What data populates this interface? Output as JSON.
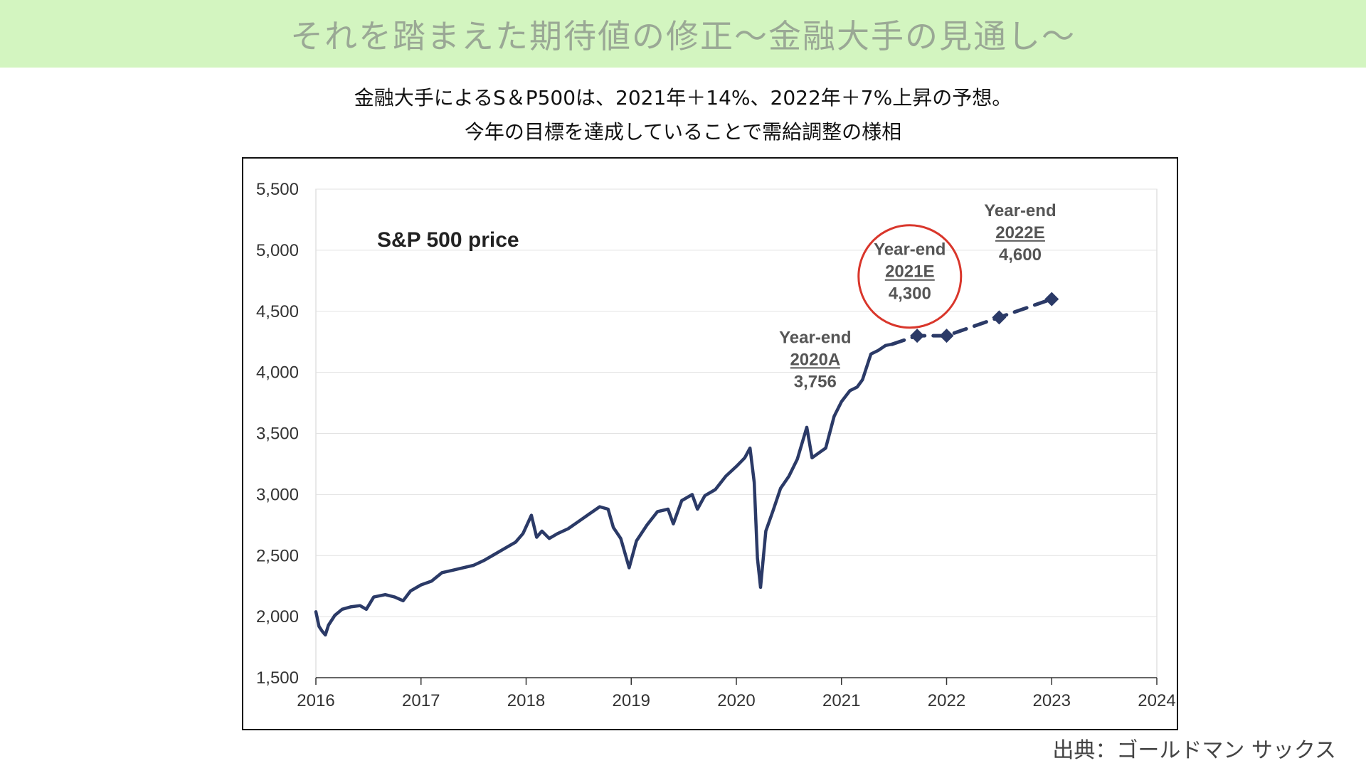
{
  "header": {
    "title": "それを踏まえた期待値の修正〜金融大手の見通し〜"
  },
  "subtitle": {
    "line1": "金融大手によるS＆P500は、2021年＋14%、2022年＋7%上昇の予想。",
    "line2": "今年の目標を達成していることで需給調整の様相"
  },
  "source": "出典：ゴールドマン サックス",
  "chart_data": {
    "type": "line",
    "title": "S&P 500 price",
    "xlabel": "",
    "ylabel": "",
    "xlim": [
      2016,
      2024
    ],
    "ylim": [
      1500,
      5500
    ],
    "x_ticks": [
      "2016",
      "2017",
      "2018",
      "2019",
      "2020",
      "2021",
      "2022",
      "2023",
      "2024"
    ],
    "y_ticks": [
      "1,500",
      "2,000",
      "2,500",
      "3,000",
      "3,500",
      "4,000",
      "4,500",
      "5,000",
      "5,500"
    ],
    "grid": "horizontal",
    "series": [
      {
        "kind": "actual",
        "color": "#2b3a67",
        "points": [
          [
            2016.0,
            2040
          ],
          [
            2016.03,
            1920
          ],
          [
            2016.06,
            1880
          ],
          [
            2016.09,
            1850
          ],
          [
            2016.12,
            1930
          ],
          [
            2016.18,
            2010
          ],
          [
            2016.25,
            2060
          ],
          [
            2016.33,
            2080
          ],
          [
            2016.42,
            2090
          ],
          [
            2016.48,
            2060
          ],
          [
            2016.55,
            2160
          ],
          [
            2016.66,
            2180
          ],
          [
            2016.75,
            2160
          ],
          [
            2016.83,
            2130
          ],
          [
            2016.9,
            2210
          ],
          [
            2017.0,
            2260
          ],
          [
            2017.1,
            2290
          ],
          [
            2017.2,
            2360
          ],
          [
            2017.3,
            2380
          ],
          [
            2017.4,
            2400
          ],
          [
            2017.5,
            2420
          ],
          [
            2017.6,
            2460
          ],
          [
            2017.7,
            2510
          ],
          [
            2017.8,
            2560
          ],
          [
            2017.9,
            2610
          ],
          [
            2017.97,
            2680
          ],
          [
            2018.05,
            2830
          ],
          [
            2018.1,
            2650
          ],
          [
            2018.15,
            2700
          ],
          [
            2018.22,
            2640
          ],
          [
            2018.3,
            2680
          ],
          [
            2018.4,
            2720
          ],
          [
            2018.5,
            2780
          ],
          [
            2018.6,
            2840
          ],
          [
            2018.7,
            2900
          ],
          [
            2018.78,
            2880
          ],
          [
            2018.83,
            2730
          ],
          [
            2018.9,
            2640
          ],
          [
            2018.98,
            2400
          ],
          [
            2019.05,
            2620
          ],
          [
            2019.15,
            2750
          ],
          [
            2019.25,
            2860
          ],
          [
            2019.35,
            2880
          ],
          [
            2019.4,
            2760
          ],
          [
            2019.48,
            2950
          ],
          [
            2019.58,
            3000
          ],
          [
            2019.63,
            2880
          ],
          [
            2019.7,
            2990
          ],
          [
            2019.8,
            3040
          ],
          [
            2019.9,
            3150
          ],
          [
            2020.0,
            3230
          ],
          [
            2020.08,
            3300
          ],
          [
            2020.13,
            3380
          ],
          [
            2020.17,
            3100
          ],
          [
            2020.2,
            2480
          ],
          [
            2020.23,
            2240
          ],
          [
            2020.28,
            2700
          ],
          [
            2020.35,
            2870
          ],
          [
            2020.42,
            3050
          ],
          [
            2020.5,
            3150
          ],
          [
            2020.58,
            3290
          ],
          [
            2020.67,
            3550
          ],
          [
            2020.72,
            3300
          ],
          [
            2020.8,
            3350
          ],
          [
            2020.85,
            3380
          ],
          [
            2020.93,
            3640
          ],
          [
            2021.0,
            3760
          ],
          [
            2021.08,
            3850
          ],
          [
            2021.15,
            3880
          ],
          [
            2021.2,
            3940
          ],
          [
            2021.28,
            4150
          ],
          [
            2021.35,
            4180
          ],
          [
            2021.42,
            4220
          ],
          [
            2021.48,
            4230
          ]
        ]
      },
      {
        "kind": "forecast",
        "color": "#2b3a67",
        "dashed": true,
        "points": [
          [
            2021.48,
            4230
          ],
          [
            2021.72,
            4300
          ],
          [
            2022.0,
            4300
          ],
          [
            2022.5,
            4450
          ],
          [
            2023.0,
            4600
          ]
        ]
      }
    ],
    "annotations": [
      {
        "lines": [
          "Year-end",
          "2020A",
          "3,756"
        ],
        "x": 2021.0,
        "y": 3756,
        "label_x": 2020.75,
        "label_y": 4240,
        "circled": false
      },
      {
        "lines": [
          "Year-end",
          "2021E",
          "4,300"
        ],
        "x": 2021.72,
        "y": 4300,
        "label_x": 2021.65,
        "label_y": 4960,
        "circled": true
      },
      {
        "lines": [
          "Year-end",
          "2022E",
          "4,600"
        ],
        "x": 2023.0,
        "y": 4600,
        "label_x": 2022.7,
        "label_y": 5280,
        "circled": false
      }
    ]
  }
}
